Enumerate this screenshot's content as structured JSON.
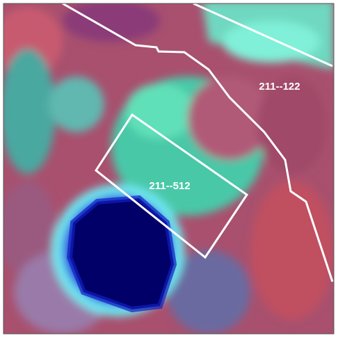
{
  "polygons": [
    {
      "label": "211--122"
    },
    {
      "label": "211--512"
    }
  ]
}
